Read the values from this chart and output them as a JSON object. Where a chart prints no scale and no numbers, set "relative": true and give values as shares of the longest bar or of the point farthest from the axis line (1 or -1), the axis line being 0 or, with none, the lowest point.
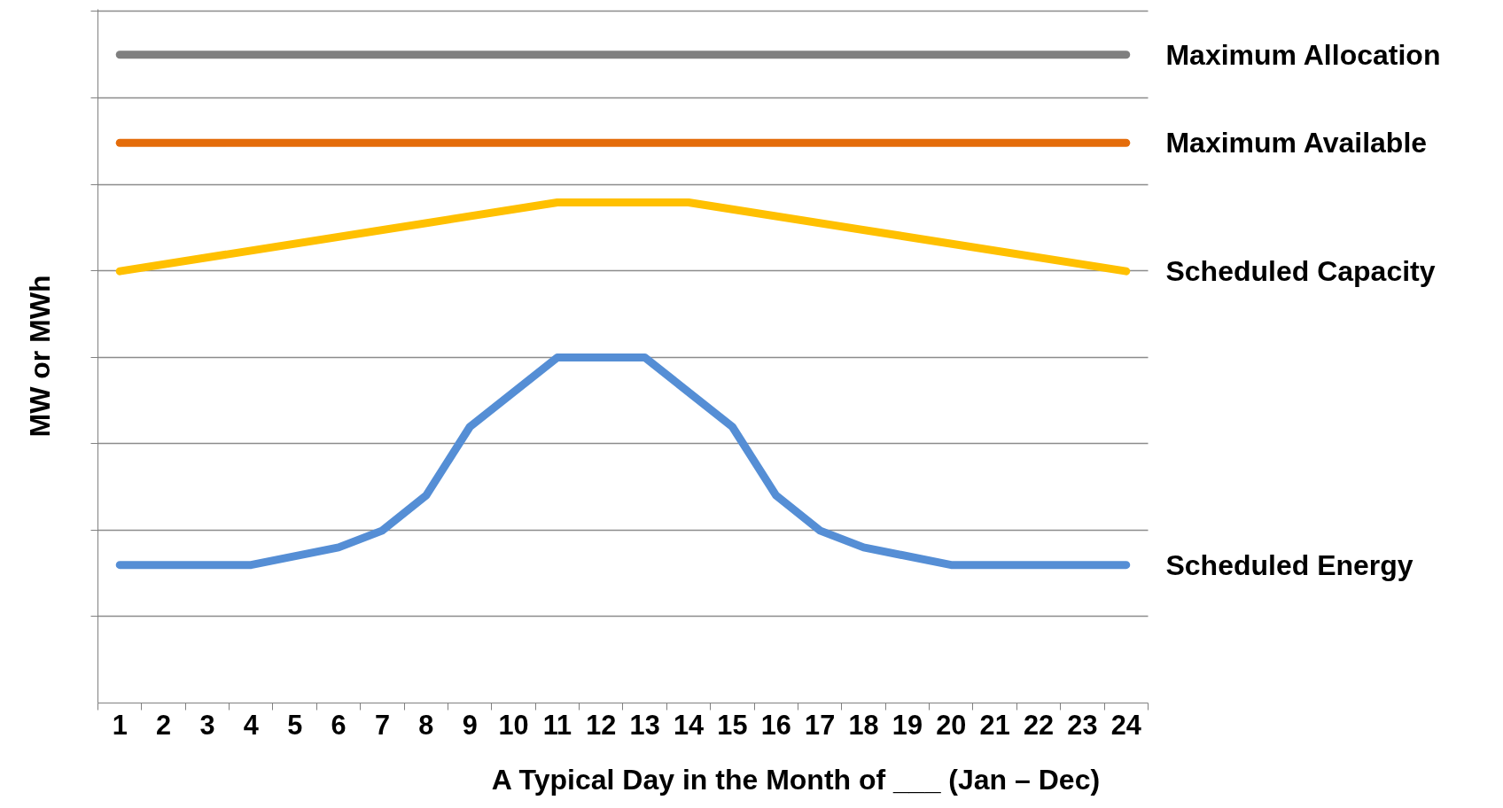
{
  "chart_data": {
    "type": "line",
    "relative": true,
    "xlabel": "A Typical Day in the Month of ___ (Jan – Dec)",
    "ylabel": "MW or MWh",
    "xlim": [
      0.5,
      24.5
    ],
    "xticks": [
      1,
      2,
      3,
      4,
      5,
      6,
      7,
      8,
      9,
      10,
      11,
      12,
      13,
      14,
      15,
      16,
      17,
      18,
      19,
      20,
      21,
      22,
      23,
      24
    ],
    "grid": "y",
    "line_style": "solid",
    "marker": "none",
    "series": [
      {
        "name": "Maximum Allocation",
        "color": "#7f7f7f",
        "x": [
          1,
          24
        ],
        "values": [
          1,
          1
        ]
      },
      {
        "name": "Maximum Available",
        "color": "#e46c0a",
        "x": [
          1,
          24
        ],
        "values": [
          0.864,
          0.864
        ]
      },
      {
        "name": "Scheduled Capacity",
        "color": "#ffc000",
        "x": [
          1,
          11,
          14,
          24
        ],
        "values": [
          0.666,
          0.772,
          0.772,
          0.666
        ]
      },
      {
        "name": "Scheduled Energy",
        "color": "#558ed5",
        "x": [
          1,
          4,
          6,
          7,
          8,
          9,
          11,
          13,
          15,
          16,
          17,
          18,
          20,
          24
        ],
        "values": [
          0.213,
          0.213,
          0.24,
          0.266,
          0.32,
          0.426,
          0.533,
          0.533,
          0.426,
          0.32,
          0.266,
          0.24,
          0.213,
          0.213
        ]
      }
    ]
  }
}
